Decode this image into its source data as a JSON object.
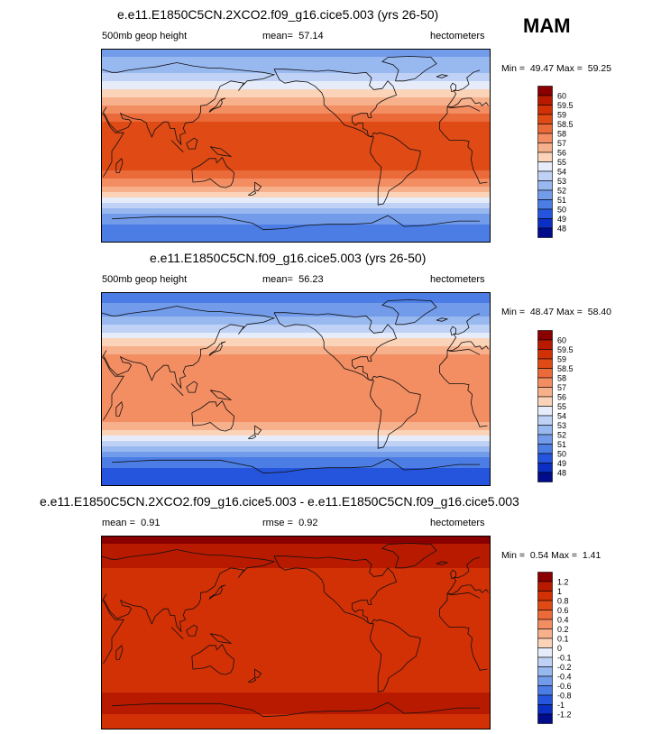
{
  "season": "MAM",
  "chart_data": [
    {
      "type": "heatmap",
      "title": "e.e11.E1850C5CN.2XCO2.f09_g16.cice5.003 (yrs 26-50)",
      "left_label": "500mb geop height",
      "mean_label": "mean=",
      "mean_value": "57.14",
      "units": "hectometers",
      "min_label": "Min =",
      "min_value": "49.47",
      "max_label": "Max =",
      "max_value": "59.25",
      "levels": [
        "60",
        "59.5",
        "59",
        "58.5",
        "58",
        "57",
        "56",
        "55",
        "54",
        "53",
        "52",
        "51",
        "50",
        "49",
        "48"
      ],
      "colors": [
        "#8a0000",
        "#b81a00",
        "#d23005",
        "#df4a15",
        "#ea6a3a",
        "#f38d62",
        "#f7b08c",
        "#fad3b8",
        "#e6ecfa",
        "#bfd2f6",
        "#98b8f0",
        "#729bea",
        "#4b7de5",
        "#2555dc",
        "#0b2ec3",
        "#000c8a"
      ],
      "bands": [
        {
          "lat": 90,
          "value": 51.8
        },
        {
          "lat": 75,
          "value": 52.2
        },
        {
          "lat": 62,
          "value": 53.6
        },
        {
          "lat": 50,
          "value": 55.3
        },
        {
          "lat": 40,
          "value": 56.8
        },
        {
          "lat": 30,
          "value": 58.0
        },
        {
          "lat": 20,
          "value": 58.7
        },
        {
          "lat": 0,
          "value": 58.9
        },
        {
          "lat": -20,
          "value": 58.7
        },
        {
          "lat": -30,
          "value": 58.1
        },
        {
          "lat": -40,
          "value": 56.5
        },
        {
          "lat": -50,
          "value": 54.6
        },
        {
          "lat": -60,
          "value": 52.6
        },
        {
          "lat": -70,
          "value": 51.2
        },
        {
          "lat": -82,
          "value": 50.3
        },
        {
          "lat": -90,
          "value": 50.6
        }
      ]
    },
    {
      "type": "heatmap",
      "title": "e.e11.E1850C5CN.f09_g16.cice5.003 (yrs 26-50)",
      "left_label": "500mb geop height",
      "mean_label": "mean=",
      "mean_value": "56.23",
      "units": "hectometers",
      "min_label": "Min =",
      "min_value": "48.47",
      "max_label": "Max =",
      "max_value": "58.40",
      "levels": [
        "60",
        "59.5",
        "59",
        "58.5",
        "58",
        "57",
        "56",
        "55",
        "54",
        "53",
        "52",
        "51",
        "50",
        "49",
        "48"
      ],
      "colors": [
        "#8a0000",
        "#b81a00",
        "#d23005",
        "#df4a15",
        "#ea6a3a",
        "#f38d62",
        "#f7b08c",
        "#fad3b8",
        "#e6ecfa",
        "#bfd2f6",
        "#98b8f0",
        "#729bea",
        "#4b7de5",
        "#2555dc",
        "#0b2ec3",
        "#000c8a"
      ],
      "bands": [
        {
          "lat": 90,
          "value": 50.6
        },
        {
          "lat": 75,
          "value": 51.2
        },
        {
          "lat": 62,
          "value": 52.7
        },
        {
          "lat": 50,
          "value": 54.5
        },
        {
          "lat": 40,
          "value": 55.9
        },
        {
          "lat": 30,
          "value": 57.2
        },
        {
          "lat": 20,
          "value": 57.7
        },
        {
          "lat": 0,
          "value": 57.8
        },
        {
          "lat": -20,
          "value": 57.7
        },
        {
          "lat": -30,
          "value": 57.2
        },
        {
          "lat": -40,
          "value": 55.5
        },
        {
          "lat": -50,
          "value": 53.5
        },
        {
          "lat": -60,
          "value": 51.6
        },
        {
          "lat": -70,
          "value": 50.2
        },
        {
          "lat": -82,
          "value": 49.3
        },
        {
          "lat": -90,
          "value": 49.6
        }
      ]
    },
    {
      "type": "heatmap",
      "title": "e.e11.E1850C5CN.2XCO2.f09_g16.cice5.003 - e.e11.E1850C5CN.f09_g16.cice5.003",
      "left_label": "mean =",
      "left_value": "0.91",
      "mean_label": "rmse =",
      "mean_value": "0.92",
      "units": "hectometers",
      "min_label": "Min =",
      "min_value": "0.54",
      "max_label": "Max =",
      "max_value": "1.41",
      "levels": [
        "1.2",
        "1",
        "0.8",
        "0.6",
        "0.4",
        "0.2",
        "0.1",
        "0",
        "-0.1",
        "-0.2",
        "-0.4",
        "-0.6",
        "-0.8",
        "-1",
        "-1.2"
      ],
      "colors": [
        "#8a0000",
        "#b81a00",
        "#d23005",
        "#df4a15",
        "#ea6a3a",
        "#f38d62",
        "#f7b08c",
        "#fad3b8",
        "#e6ecfa",
        "#bfd2f6",
        "#98b8f0",
        "#729bea",
        "#4b7de5",
        "#2555dc",
        "#0b2ec3",
        "#000c8a"
      ],
      "bands": [
        {
          "lat": 90,
          "value": 1.25
        },
        {
          "lat": 70,
          "value": 1.1
        },
        {
          "lat": 55,
          "value": 0.95
        },
        {
          "lat": 40,
          "value": 0.9
        },
        {
          "lat": 0,
          "value": 0.88
        },
        {
          "lat": -40,
          "value": 0.9
        },
        {
          "lat": -55,
          "value": 1.0
        },
        {
          "lat": -65,
          "value": 1.1
        },
        {
          "lat": -80,
          "value": 0.95
        },
        {
          "lat": -90,
          "value": 0.9
        }
      ]
    }
  ]
}
